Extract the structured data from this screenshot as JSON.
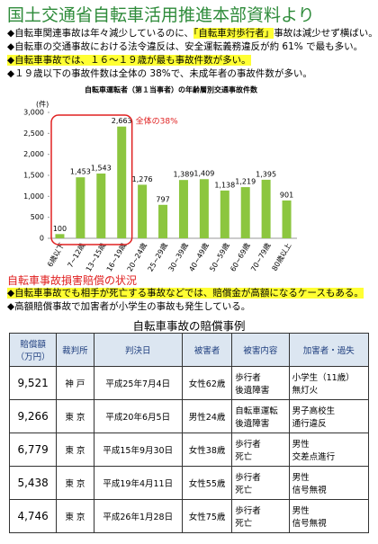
{
  "header": {
    "title": "国土交通省自転車活用推進本部資料より"
  },
  "bullets": [
    [
      "◆自転車関連事故は年々減少しているのに、",
      "「自転車対歩行者」",
      "事故は減少せず横ばい。"
    ],
    [
      "◆自転車の交通事故における法令違反は、安全運転義務違反が約 61% で最も多い。"
    ],
    [
      "◆自転車事故では、１６～１９歳が最も事故件数が多い。"
    ],
    [
      "◆１９歳以下の事故件数は全体の 38%で、未成年者の事故件数が多い。"
    ]
  ],
  "chart_data": {
    "type": "bar",
    "title": "自転車運転者（第１当事者）の年齢層別交通事故件数",
    "y_label": "(件)",
    "annotation": "全体の38%",
    "categories": [
      "6歳以下",
      "7~12歳",
      "13~15歳",
      "16~19歳",
      "20~24歳",
      "25~29歳",
      "30~39歳",
      "40~49歳",
      "50~59歳",
      "60~69歳",
      "70~79歳",
      "80歳以上"
    ],
    "values": [
      100,
      1453,
      1543,
      2663,
      1276,
      797,
      1389,
      1409,
      1138,
      1219,
      1395,
      901
    ],
    "value_labels": [
      "100",
      "1,453",
      "1,543",
      "2,663",
      "1,276",
      "797",
      "1,389",
      "1,409",
      "1,138",
      "1,219",
      "1,395",
      "901"
    ],
    "color": "#8cc63f",
    "ylim": [
      0,
      3000
    ],
    "yticks": [
      0,
      500,
      {
        "value": 1000,
        "label": "1,000"
      },
      {
        "value": 1500,
        "label": "1,500"
      },
      {
        "value": 2000,
        "label": "2,000"
      },
      {
        "value": 2500,
        "label": "2,500"
      },
      {
        "value": 3000,
        "label": "3,000"
      }
    ],
    "grid": false
  },
  "section": {
    "title": "自転車事故損害賠償の状況",
    "bullets": [
      [
        "◆自転車事故でも相手が死亡する事故などでは、賠償金が高額になるケースもある。"
      ],
      [
        "◆高額賠償事故で加害者が小学生の事故も発生している。"
      ]
    ]
  },
  "table": {
    "title": "自転車事故の賠償事例",
    "header": [
      "賠償額\n（万円）",
      "裁判所",
      "判決日",
      "被害者",
      "被害内容",
      "加害者・過失"
    ],
    "rows": [
      [
        "9,521",
        "神 戸",
        "平成25年7月4日",
        "女性62歳",
        "歩行者\n後遺障害",
        "小学生（11歳）\n無灯火"
      ],
      [
        "9,266",
        "東 京",
        "平成20年6月5日",
        "男性24歳",
        "自転車運転\n後遺障害",
        "男子高校生\n通行違反"
      ],
      [
        "6,779",
        "東 京",
        "平成15年9月30日",
        "女性38歳",
        "歩行者\n死亡",
        "男性\n交差点進行"
      ],
      [
        "5,438",
        "東 京",
        "平成19年4月11日",
        "女性55歳",
        "歩行者\n死亡",
        "男性\n信号無視"
      ],
      [
        "4,746",
        "東 京",
        "平成26年1月28日",
        "女性75歳",
        "歩行者\n死亡",
        "男性\n信号無視"
      ]
    ]
  }
}
